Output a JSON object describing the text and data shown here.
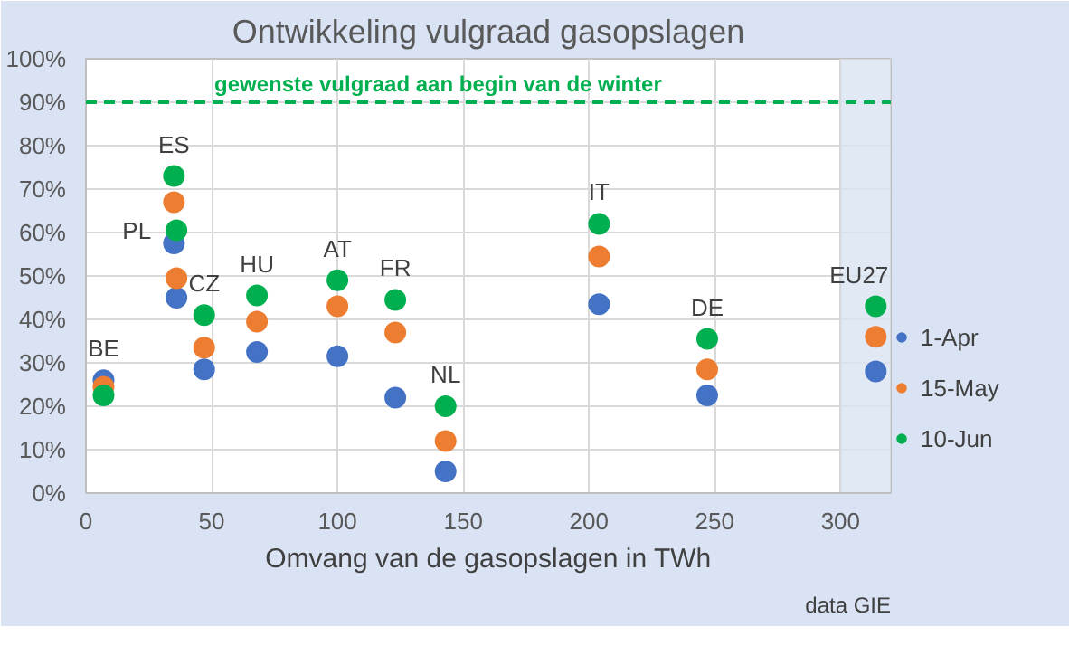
{
  "chart_data": {
    "type": "scatter",
    "title": "Ontwikkeling vulgraad gasopslagen",
    "xlabel": "Omvang van de gasopslagen in TWh",
    "x": [
      7,
      35,
      36,
      47,
      68,
      100,
      123,
      143,
      204,
      247,
      314
    ],
    "series": [
      {
        "name": "1-Apr",
        "color": "#4472c4",
        "values": [
          26,
          57.5,
          45,
          28.5,
          32.5,
          31.5,
          22,
          5,
          43.5,
          22.5,
          28
        ]
      },
      {
        "name": "15-May",
        "color": "#ed7d31",
        "values": [
          24.5,
          67,
          49.5,
          33.5,
          39.5,
          43,
          37,
          12,
          54.5,
          28.5,
          36
        ]
      },
      {
        "name": "10-Jun",
        "color": "#00b050",
        "values": [
          22.5,
          73,
          60.5,
          41,
          45.5,
          49,
          44.5,
          20,
          62,
          35.5,
          43
        ]
      }
    ],
    "xlim": [
      0,
      320
    ],
    "ylim": [
      0,
      100
    ],
    "xticks": [
      0,
      50,
      100,
      150,
      200,
      250,
      300
    ],
    "yticks": [
      {
        "value": 0,
        "label": "0%"
      },
      {
        "value": 10,
        "label": "10%"
      },
      {
        "value": 20,
        "label": "20%"
      },
      {
        "value": 30,
        "label": "30%"
      },
      {
        "value": 40,
        "label": "40%"
      },
      {
        "value": 50,
        "label": "50%"
      },
      {
        "value": 60,
        "label": "60%"
      },
      {
        "value": 70,
        "label": "70%"
      },
      {
        "value": 80,
        "label": "80%"
      },
      {
        "value": 90,
        "label": "90%"
      },
      {
        "value": 100,
        "label": "100%"
      }
    ],
    "ref_lines": [
      {
        "axis": "y",
        "value": 90,
        "label": "gewenste vulgraad aan begin van de winter",
        "color": "#00b050",
        "line_style": "dashed"
      }
    ],
    "bands": [
      {
        "axis": "x",
        "from": 300,
        "to": 320,
        "color": "#dae3f3"
      }
    ],
    "annotations": [
      {
        "text": "BE",
        "x": 7,
        "y": 26
      },
      {
        "text": "ES",
        "x": 35,
        "y": 73
      },
      {
        "text": "PL",
        "x": 36,
        "y": 60.5
      },
      {
        "text": "CZ",
        "x": 47,
        "y": 41
      },
      {
        "text": "HU",
        "x": 68,
        "y": 45.5
      },
      {
        "text": "AT",
        "x": 100,
        "y": 49
      },
      {
        "text": "FR",
        "x": 123,
        "y": 44.5
      },
      {
        "text": "NL",
        "x": 143,
        "y": 20
      },
      {
        "text": "IT",
        "x": 204,
        "y": 62
      },
      {
        "text": "DE",
        "x": 247,
        "y": 35.5
      },
      {
        "text": "EU27",
        "x": 314,
        "y": 43
      },
      "data GIE"
    ],
    "grid": true,
    "legend": "right",
    "marker": "circle"
  }
}
